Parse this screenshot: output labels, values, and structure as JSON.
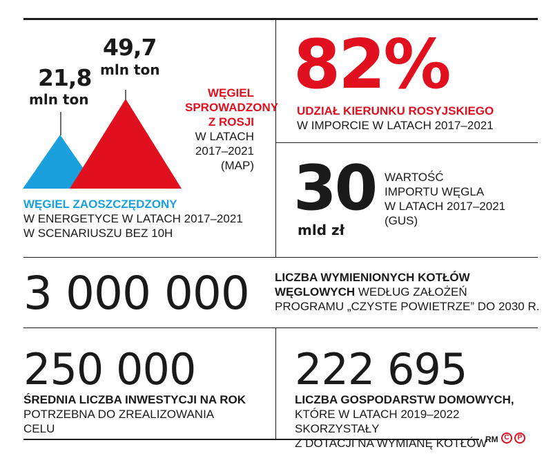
{
  "colors": {
    "red": "#e0101e",
    "blue": "#1aa0dc",
    "ink": "#1a1a1a"
  },
  "panel_coal": {
    "saved_value": "21,8",
    "saved_unit": "mln ton",
    "imported_value": "49,7",
    "imported_unit": "mln ton",
    "imported_caption_lines": [
      "WĘGIEL",
      "SPROWADZONY",
      "Z ROSJI"
    ],
    "imported_detail_lines": [
      "W LATACH",
      "2017–2021",
      "(MAP)"
    ],
    "saved_caption": "WĘGIEL ZAOSZCZĘDZONY",
    "saved_detail_lines": [
      "W ENERGETYCE W LATACH 2017–2021",
      "W SCENARIUSZU BEZ 10H"
    ]
  },
  "panel_share": {
    "value": "82%",
    "caption": "UDZIAŁ KIERUNKU ROSYJSKIEGO",
    "detail": "W IMPORCIE W LATACH 2017–2021"
  },
  "panel_import_value": {
    "value": "30",
    "unit": "mld zł",
    "detail_lines": [
      "WARTOŚĆ",
      "IMPORTU WĘGLA",
      "W LATACH 2017–2021",
      "(GUS)"
    ]
  },
  "panel_boilers": {
    "value": "3 000 000",
    "caption_bold": "LICZBA WYMIENIONYCH KOTŁÓW",
    "caption_bold2": "WĘGLOWYCH",
    "caption_rest": " WEDŁUG ZAŁOŻEŃ",
    "caption_line3": "PROGRAMU „CZYSTE POWIETRZE” DO 2030 r."
  },
  "panel_average": {
    "value": "250 000",
    "caption": "ŚREDNIA LICZBA INWESTYCJI NA ROK",
    "detail_lines": [
      "POTRZEBNA DO ZREALIZOWANIA",
      "CELU"
    ]
  },
  "panel_households": {
    "value": "222 695",
    "caption": "LICZBA GOSPODARSTW DOMOWYCH,",
    "detail_lines": [
      "KTÓRE W LATACH 2019–2022 SKORZYSTAŁY",
      "Z DOTACJI NA WYMIANĘ KOTŁÓW"
    ]
  },
  "footer": {
    "author": "RM",
    "c_mark": "C",
    "p_mark": "P"
  }
}
